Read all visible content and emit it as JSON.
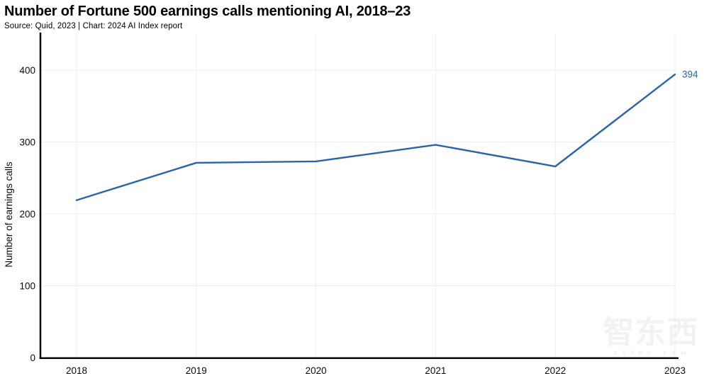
{
  "header": {
    "title": "Number of Fortune 500 earnings calls mentioning AI, 2018–23",
    "source_line": "Source: Quid, 2023 | Chart: 2024 AI Index report"
  },
  "chart_data": {
    "type": "line",
    "x": [
      "2018",
      "2019",
      "2020",
      "2021",
      "2022",
      "2023"
    ],
    "series": [
      {
        "name": "Fortune 500 earnings calls mentioning AI",
        "values": [
          219,
          271,
          273,
          296,
          266,
          394
        ]
      }
    ],
    "title": "Number of Fortune 500 earnings calls mentioning AI, 2018–23",
    "xlabel": "",
    "ylabel": "Number of earnings calls",
    "ylim": [
      0,
      450
    ],
    "yticks": [
      0,
      100,
      200,
      300,
      400
    ],
    "grid": true,
    "legend": "none",
    "line_color": "#2a64ac",
    "last_value_label": "394",
    "label_color": "#2a64ac"
  },
  "watermark": {
    "text": "智东西",
    "subtext": "z h i d x . c o m"
  }
}
